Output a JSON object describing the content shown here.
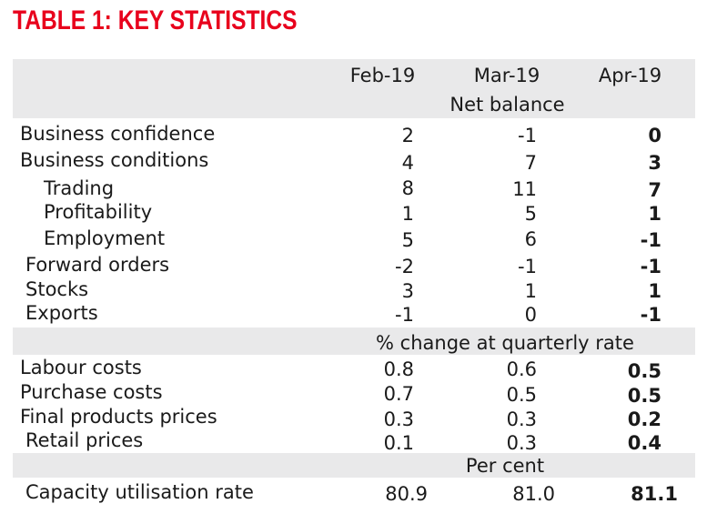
{
  "title": "TABLE 1: KEY STATISTICS",
  "columns": [
    "Feb-19",
    "Mar-19",
    "Apr-19"
  ],
  "sections": [
    {
      "subheader": "Net balance",
      "rows": [
        {
          "label": "Business confidence",
          "values": [
            "2",
            "-1",
            "0"
          ]
        },
        {
          "label": "Business conditions",
          "values": [
            "4",
            "7",
            "3"
          ]
        },
        {
          "label": "Trading",
          "values": [
            "8",
            "11",
            "7"
          ]
        },
        {
          "label": "Profitability",
          "values": [
            "1",
            "5",
            "1"
          ]
        },
        {
          "label": "Employment",
          "values": [
            "5",
            "6",
            "-1"
          ]
        },
        {
          "label": "Forward orders",
          "values": [
            "-2",
            "-1",
            "-1"
          ]
        },
        {
          "label": "Stocks",
          "values": [
            "3",
            "1",
            "1"
          ]
        },
        {
          "label": "Exports",
          "values": [
            "-1",
            "0",
            "-1"
          ]
        }
      ]
    },
    {
      "subheader": "% change at quarterly rate",
      "rows": [
        {
          "label": "Labour costs",
          "values": [
            "0.8",
            "0.6",
            "0.5"
          ]
        },
        {
          "label": "Purchase costs",
          "values": [
            "0.7",
            "0.5",
            "0.5"
          ]
        },
        {
          "label": "Final products prices",
          "values": [
            "0.3",
            "0.3",
            "0.2"
          ]
        },
        {
          "label": "Retail prices",
          "values": [
            "0.1",
            "0.3",
            "0.4"
          ]
        }
      ]
    },
    {
      "subheader": "Per cent",
      "rows": [
        {
          "label": "Capacity utilisation rate",
          "values": [
            "80.9",
            "81.0",
            "81.1"
          ]
        }
      ]
    }
  ],
  "colors": {
    "title": "#e8001c",
    "band": "#e9e9ea",
    "text": "#1a1a1a"
  }
}
